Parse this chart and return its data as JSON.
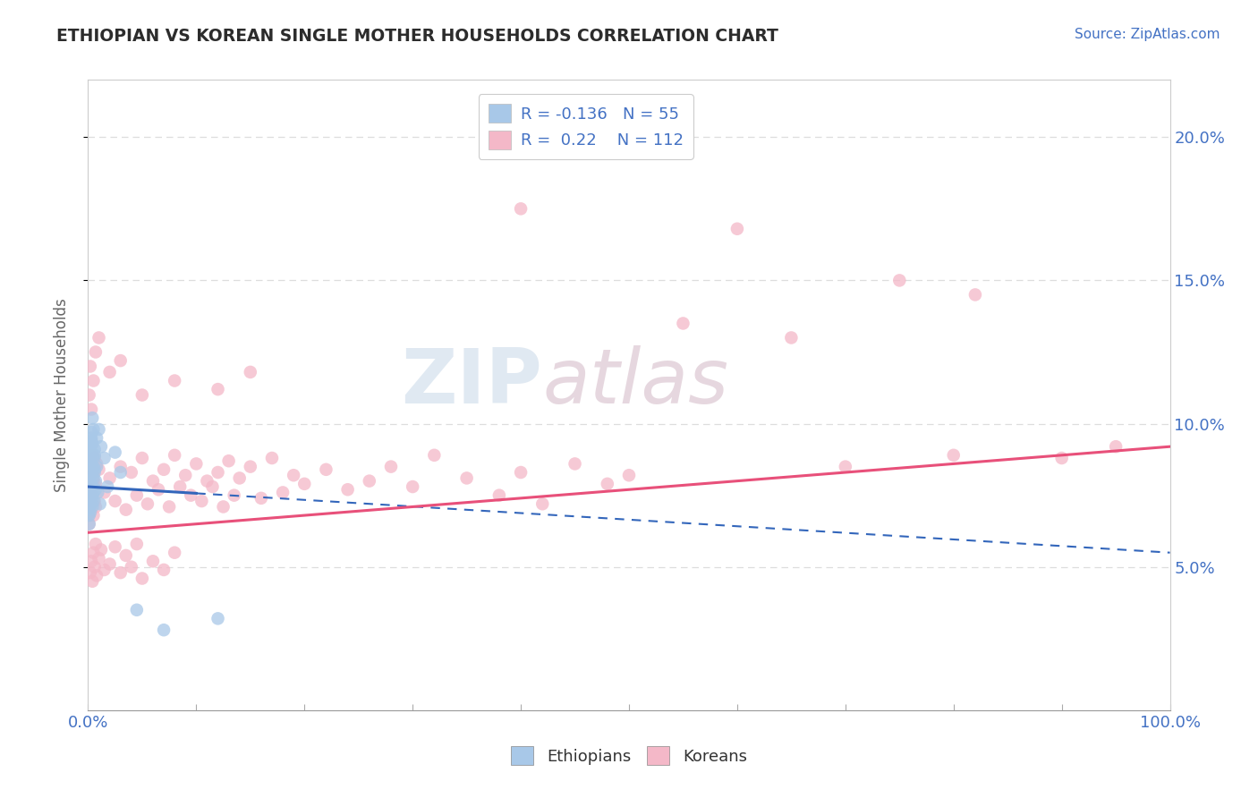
{
  "title": "ETHIOPIAN VS KOREAN SINGLE MOTHER HOUSEHOLDS CORRELATION CHART",
  "source": "Source: ZipAtlas.com",
  "ylabel": "Single Mother Households",
  "legend_ethiopians": "Ethiopians",
  "legend_koreans": "Koreans",
  "r_ethiopian": -0.136,
  "n_ethiopian": 55,
  "r_korean": 0.22,
  "n_korean": 112,
  "watermark_zip": "ZIP",
  "watermark_atlas": "atlas",
  "title_color": "#2c2c2c",
  "source_color": "#4472c4",
  "axis_label_color": "#4472c4",
  "ylabel_color": "#666666",
  "r_value_color": "#4472c4",
  "ethiopian_color": "#a8c8e8",
  "korean_color": "#f4b8c8",
  "ethiopian_line_color": "#3366bb",
  "korean_line_color": "#e8507a",
  "grid_color": "#dddddd",
  "background_color": "#ffffff",
  "ethiopian_scatter": [
    [
      0.1,
      7.2
    ],
    [
      0.2,
      8.8
    ],
    [
      0.3,
      9.5
    ],
    [
      0.4,
      10.2
    ],
    [
      0.5,
      9.8
    ],
    [
      0.1,
      6.8
    ],
    [
      0.2,
      7.5
    ],
    [
      0.3,
      8.2
    ],
    [
      0.4,
      7.8
    ],
    [
      0.5,
      8.5
    ],
    [
      0.1,
      8.0
    ],
    [
      0.2,
      9.2
    ],
    [
      0.3,
      7.4
    ],
    [
      0.4,
      8.9
    ],
    [
      0.6,
      9.1
    ],
    [
      0.1,
      7.0
    ],
    [
      0.2,
      8.4
    ],
    [
      0.3,
      9.0
    ],
    [
      0.5,
      7.6
    ],
    [
      0.6,
      8.3
    ],
    [
      0.1,
      6.5
    ],
    [
      0.2,
      7.9
    ],
    [
      0.3,
      8.6
    ],
    [
      0.4,
      9.3
    ],
    [
      0.7,
      8.0
    ],
    [
      0.1,
      7.8
    ],
    [
      0.2,
      6.9
    ],
    [
      0.3,
      7.2
    ],
    [
      0.5,
      8.8
    ],
    [
      0.8,
      9.5
    ],
    [
      0.1,
      9.1
    ],
    [
      0.2,
      8.0
    ],
    [
      0.4,
      7.5
    ],
    [
      0.6,
      8.4
    ],
    [
      1.0,
      9.8
    ],
    [
      0.1,
      7.3
    ],
    [
      0.3,
      9.4
    ],
    [
      0.5,
      8.1
    ],
    [
      0.7,
      7.7
    ],
    [
      1.2,
      9.2
    ],
    [
      0.2,
      8.6
    ],
    [
      0.4,
      7.1
    ],
    [
      0.6,
      8.9
    ],
    [
      0.9,
      7.6
    ],
    [
      1.5,
      8.8
    ],
    [
      0.3,
      9.7
    ],
    [
      0.5,
      7.3
    ],
    [
      0.8,
      8.5
    ],
    [
      1.1,
      7.2
    ],
    [
      1.8,
      7.8
    ],
    [
      2.5,
      9.0
    ],
    [
      3.0,
      8.3
    ],
    [
      4.5,
      3.5
    ],
    [
      7.0,
      2.8
    ],
    [
      12.0,
      3.2
    ]
  ],
  "korean_scatter": [
    [
      0.1,
      7.8
    ],
    [
      0.2,
      8.5
    ],
    [
      0.3,
      7.2
    ],
    [
      0.4,
      8.0
    ],
    [
      0.5,
      6.8
    ],
    [
      0.1,
      6.5
    ],
    [
      0.2,
      7.0
    ],
    [
      0.3,
      8.3
    ],
    [
      0.4,
      7.5
    ],
    [
      0.6,
      8.8
    ],
    [
      0.1,
      7.5
    ],
    [
      0.2,
      6.9
    ],
    [
      0.3,
      7.8
    ],
    [
      0.5,
      8.2
    ],
    [
      0.7,
      7.1
    ],
    [
      0.1,
      8.2
    ],
    [
      0.2,
      7.6
    ],
    [
      0.4,
      8.9
    ],
    [
      0.6,
      7.3
    ],
    [
      0.8,
      8.6
    ],
    [
      0.1,
      6.8
    ],
    [
      0.3,
      7.4
    ],
    [
      0.5,
      8.0
    ],
    [
      0.7,
      7.9
    ],
    [
      1.0,
      8.4
    ],
    [
      1.5,
      7.6
    ],
    [
      2.0,
      8.1
    ],
    [
      2.5,
      7.3
    ],
    [
      3.0,
      8.5
    ],
    [
      3.5,
      7.0
    ],
    [
      4.0,
      8.3
    ],
    [
      4.5,
      7.5
    ],
    [
      5.0,
      8.8
    ],
    [
      5.5,
      7.2
    ],
    [
      6.0,
      8.0
    ],
    [
      6.5,
      7.7
    ],
    [
      7.0,
      8.4
    ],
    [
      7.5,
      7.1
    ],
    [
      8.0,
      8.9
    ],
    [
      8.5,
      7.8
    ],
    [
      9.0,
      8.2
    ],
    [
      9.5,
      7.5
    ],
    [
      10.0,
      8.6
    ],
    [
      10.5,
      7.3
    ],
    [
      11.0,
      8.0
    ],
    [
      11.5,
      7.8
    ],
    [
      12.0,
      8.3
    ],
    [
      12.5,
      7.1
    ],
    [
      13.0,
      8.7
    ],
    [
      13.5,
      7.5
    ],
    [
      14.0,
      8.1
    ],
    [
      15.0,
      8.5
    ],
    [
      16.0,
      7.4
    ],
    [
      17.0,
      8.8
    ],
    [
      18.0,
      7.6
    ],
    [
      19.0,
      8.2
    ],
    [
      20.0,
      7.9
    ],
    [
      22.0,
      8.4
    ],
    [
      24.0,
      7.7
    ],
    [
      26.0,
      8.0
    ],
    [
      28.0,
      8.5
    ],
    [
      30.0,
      7.8
    ],
    [
      32.0,
      8.9
    ],
    [
      35.0,
      8.1
    ],
    [
      38.0,
      7.5
    ],
    [
      40.0,
      8.3
    ],
    [
      42.0,
      7.2
    ],
    [
      45.0,
      8.6
    ],
    [
      48.0,
      7.9
    ],
    [
      50.0,
      8.2
    ],
    [
      0.2,
      4.8
    ],
    [
      0.3,
      5.2
    ],
    [
      0.4,
      4.5
    ],
    [
      0.5,
      5.5
    ],
    [
      0.6,
      5.0
    ],
    [
      0.7,
      5.8
    ],
    [
      0.8,
      4.7
    ],
    [
      1.0,
      5.3
    ],
    [
      1.2,
      5.6
    ],
    [
      1.5,
      4.9
    ],
    [
      2.0,
      5.1
    ],
    [
      2.5,
      5.7
    ],
    [
      3.0,
      4.8
    ],
    [
      3.5,
      5.4
    ],
    [
      4.0,
      5.0
    ],
    [
      4.5,
      5.8
    ],
    [
      5.0,
      4.6
    ],
    [
      6.0,
      5.2
    ],
    [
      7.0,
      4.9
    ],
    [
      8.0,
      5.5
    ],
    [
      0.1,
      11.0
    ],
    [
      0.2,
      12.0
    ],
    [
      0.3,
      10.5
    ],
    [
      0.5,
      11.5
    ],
    [
      0.7,
      12.5
    ],
    [
      1.0,
      13.0
    ],
    [
      2.0,
      11.8
    ],
    [
      3.0,
      12.2
    ],
    [
      5.0,
      11.0
    ],
    [
      8.0,
      11.5
    ],
    [
      12.0,
      11.2
    ],
    [
      15.0,
      11.8
    ],
    [
      40.0,
      17.5
    ],
    [
      60.0,
      16.8
    ],
    [
      75.0,
      15.0
    ],
    [
      82.0,
      14.5
    ],
    [
      55.0,
      13.5
    ],
    [
      65.0,
      13.0
    ],
    [
      90.0,
      8.8
    ],
    [
      95.0,
      9.2
    ],
    [
      70.0,
      8.5
    ],
    [
      80.0,
      8.9
    ]
  ],
  "xlim": [
    0,
    100
  ],
  "ylim": [
    0,
    22
  ],
  "xtick_positions": [
    0,
    10,
    20,
    30,
    40,
    50,
    60,
    70,
    80,
    90,
    100
  ],
  "ytick_positions": [
    5,
    10,
    15,
    20
  ],
  "eth_line_x": [
    0,
    100
  ],
  "eth_line_y": [
    7.8,
    5.5
  ],
  "kor_line_x": [
    0,
    100
  ],
  "kor_line_y": [
    6.2,
    9.2
  ]
}
